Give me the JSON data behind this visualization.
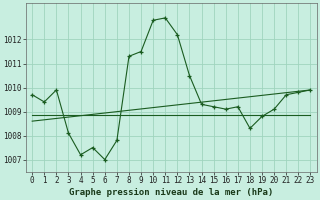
{
  "xlabel": "Graphe pression niveau de la mer (hPa)",
  "background_color": "#c8eee0",
  "grid_color": "#a0d4be",
  "line_color": "#1a5c20",
  "series1": {
    "x": [
      0,
      1,
      2,
      3,
      4,
      5,
      6,
      7,
      8,
      9,
      10,
      11,
      12,
      13,
      14,
      15,
      16,
      17,
      18,
      19,
      20,
      21,
      22,
      23
    ],
    "y": [
      1009.7,
      1009.4,
      1009.9,
      1008.1,
      1007.2,
      1007.5,
      1007.0,
      1007.8,
      1011.3,
      1011.5,
      1012.8,
      1012.9,
      1012.2,
      1010.5,
      1009.3,
      1009.2,
      1009.1,
      1009.2,
      1008.3,
      1008.8,
      1009.1,
      1009.7,
      1009.8,
      1009.9
    ]
  },
  "series2": {
    "x": [
      0,
      1,
      2,
      3,
      4,
      5,
      6,
      7,
      8,
      9,
      10,
      11,
      12,
      13,
      14,
      15,
      16,
      17,
      18,
      19,
      20,
      21,
      22,
      23
    ],
    "y": [
      1008.85,
      1008.85,
      1008.85,
      1008.85,
      1008.85,
      1008.85,
      1008.85,
      1008.85,
      1008.85,
      1008.85,
      1008.85,
      1008.85,
      1008.85,
      1008.85,
      1008.85,
      1008.85,
      1008.85,
      1008.85,
      1008.85,
      1008.85,
      1008.85,
      1008.85,
      1008.85,
      1008.85
    ]
  },
  "series3": {
    "x": [
      0,
      23
    ],
    "y": [
      1008.6,
      1009.9
    ]
  },
  "ylim": [
    1006.5,
    1013.5
  ],
  "yticks": [
    1007,
    1008,
    1009,
    1010,
    1011,
    1012
  ],
  "xticks": [
    0,
    1,
    2,
    3,
    4,
    5,
    6,
    7,
    8,
    9,
    10,
    11,
    12,
    13,
    14,
    15,
    16,
    17,
    18,
    19,
    20,
    21,
    22,
    23
  ],
  "xtick_labels": [
    "0",
    "1",
    "2",
    "3",
    "4",
    "5",
    "6",
    "7",
    "8",
    "9",
    "10",
    "11",
    "12",
    "13",
    "14",
    "15",
    "16",
    "17",
    "18",
    "19",
    "20",
    "21",
    "22",
    "23"
  ],
  "label_fontsize": 6.5,
  "tick_fontsize": 5.5
}
